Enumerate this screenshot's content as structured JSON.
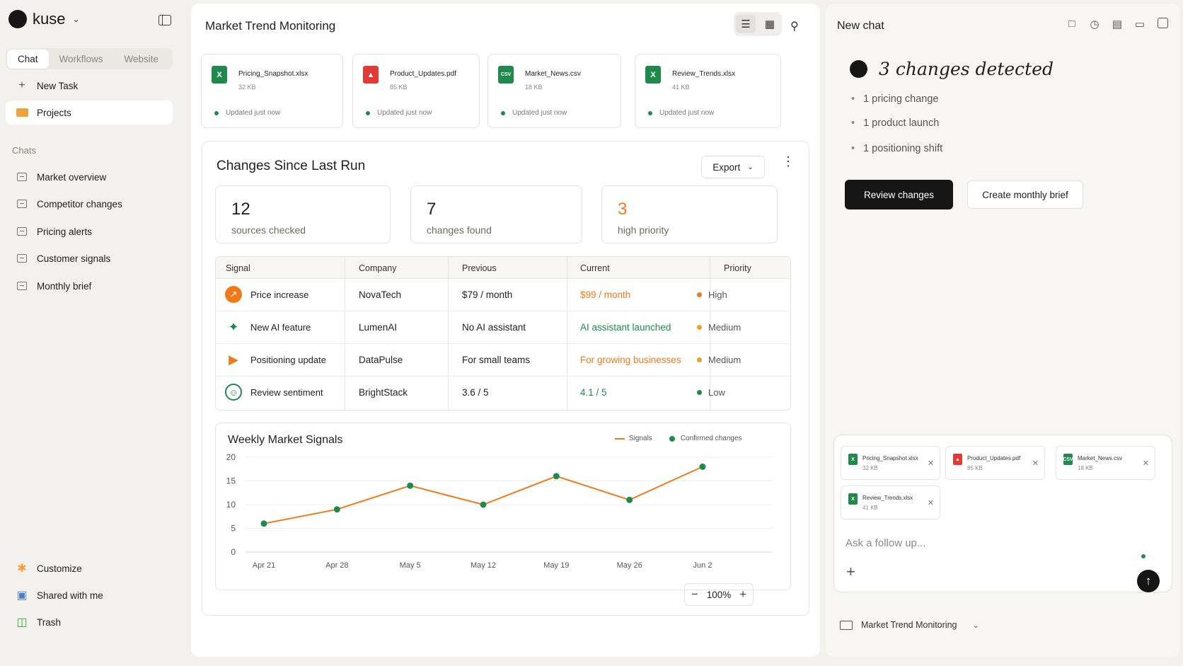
{
  "brand": {
    "name": "kuse"
  },
  "sidebar": {
    "tabs": [
      {
        "label": "Chat",
        "active": true
      },
      {
        "label": "Workflows",
        "active": false
      },
      {
        "label": "Website",
        "active": false
      }
    ],
    "new_task": "New Task",
    "projects": "Projects",
    "chats_heading": "Chats",
    "chats": [
      "Market overview",
      "Competitor changes",
      "Pricing alerts",
      "Customer signals",
      "Monthly brief"
    ],
    "bottom": [
      "Customize",
      "Shared with me",
      "Trash"
    ]
  },
  "main": {
    "title": "Market Trend Monitoring",
    "files": [
      {
        "name": "Pricing_Snapshot.xlsx",
        "size": "32 KB",
        "status": "Updated just now",
        "type": "xlsx",
        "icon": "excel-file-icon"
      },
      {
        "name": "Product_Updates.pdf",
        "size": "85 KB",
        "status": "Updated just now",
        "type": "pdf",
        "icon": "pdf-file-icon"
      },
      {
        "name": "Market_News.csv",
        "size": "18 KB",
        "status": "Updated just now",
        "type": "csv",
        "icon": "csv-file-icon"
      },
      {
        "name": "Review_Trends.xlsx",
        "size": "41 KB",
        "status": "Updated just now",
        "type": "xlsx",
        "icon": "excel-file-icon"
      }
    ],
    "changes": {
      "title": "Changes Since Last Run",
      "export_label": "Export",
      "stats": [
        {
          "value": "12",
          "label": "sources checked"
        },
        {
          "value": "7",
          "label": "changes found"
        },
        {
          "value": "3",
          "label": "high priority"
        }
      ],
      "table": {
        "headers": [
          "Signal",
          "Company",
          "Previous",
          "Current",
          "Priority"
        ],
        "rows": [
          {
            "signal": "Price increase",
            "company": "NovaTech",
            "previous": "$79 / month",
            "current": "$99 / month",
            "priority": "High",
            "priority_color": "#f07a1a",
            "current_color": "#f07a1a",
            "icon": "trend-up-icon"
          },
          {
            "signal": "New AI feature",
            "company": "LumenAI",
            "previous": "No AI assistant",
            "current": "AI assistant launched",
            "priority": "Medium",
            "priority_color": "#f0a020",
            "current_color": "#1f8a4c",
            "icon": "sparkle-icon"
          },
          {
            "signal": "Positioning update",
            "company": "DataPulse",
            "previous": "For small teams",
            "current": "For growing businesses",
            "priority": "Medium",
            "priority_color": "#f0a020",
            "current_color": "#f07a1a",
            "icon": "megaphone-icon"
          },
          {
            "signal": "Review sentiment",
            "company": "BrightStack",
            "previous": "3.6 / 5",
            "current": "4.1 / 5",
            "priority": "Low",
            "priority_color": "#1f8a4c",
            "current_color": "#1f8a4c",
            "icon": "smile-icon"
          }
        ]
      }
    },
    "zoom": "100%"
  },
  "chart_data": {
    "type": "line",
    "title": "Weekly Market Signals",
    "categories": [
      "Apr 21",
      "Apr 28",
      "May 5",
      "May 12",
      "May 19",
      "May 26",
      "Jun 2"
    ],
    "series": [
      {
        "name": "Signals",
        "values": [
          6,
          9,
          14,
          10,
          16,
          11,
          18
        ],
        "color": "#f07a1a"
      }
    ],
    "markers_legend": "Confirmed changes",
    "marker_color": "#1f8a4c",
    "yticks": [
      0,
      5,
      10,
      15,
      20
    ],
    "ylim": [
      0,
      20
    ],
    "grid": "horizontal",
    "legend_position": "top-right"
  },
  "chat": {
    "title": "New chat",
    "heading": "3 changes detected",
    "bullets": [
      "1 pricing change",
      "1 product launch",
      "1 positioning shift"
    ],
    "primary_button": "Review changes",
    "secondary_button": "Create monthly brief",
    "attachments": [
      {
        "name": "Pricing_Snapshot.xlsx",
        "size": "32 KB",
        "type": "xlsx"
      },
      {
        "name": "Product_Updates.pdf",
        "size": "85 KB",
        "type": "pdf"
      },
      {
        "name": "Market_News.csv",
        "size": "18 KB",
        "type": "csv"
      },
      {
        "name": "Review_Trends.xlsx",
        "size": "41 KB",
        "type": "xlsx"
      }
    ],
    "input_placeholder": "Ask a follow up...",
    "project": "Market Trend Monitoring"
  }
}
